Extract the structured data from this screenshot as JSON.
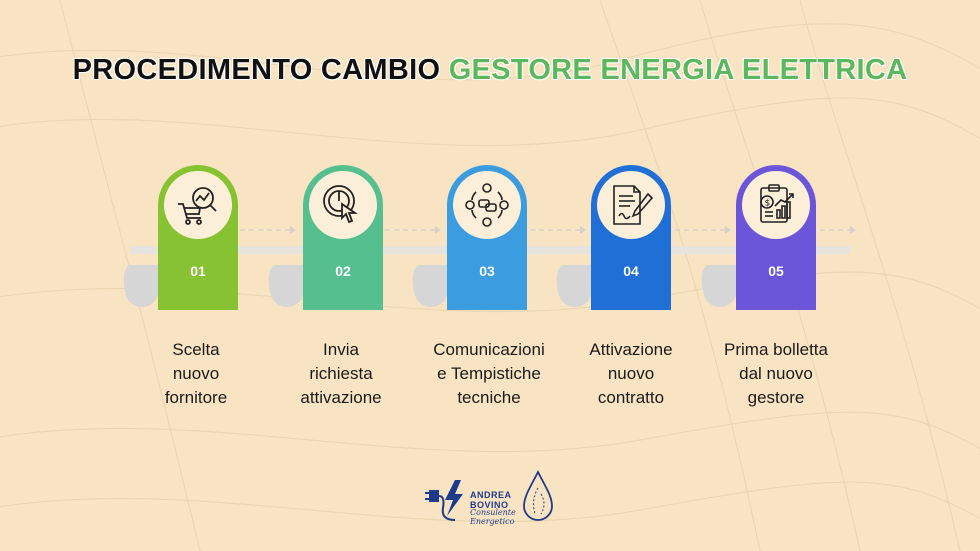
{
  "title": {
    "part1": "PROCEDIMENTO CAMBIO",
    "part2": "GESTORE ENERGIA ELETTRICA"
  },
  "steps": [
    {
      "number": "01",
      "label_lines": [
        "Scelta",
        "nuovo",
        "fornitore"
      ],
      "color": "#86c232",
      "icon": "shopping-cart-magnifier-icon"
    },
    {
      "number": "02",
      "label_lines": [
        "Invia",
        "richiesta",
        "attivazione"
      ],
      "color": "#55bf8f",
      "icon": "power-button-click-icon"
    },
    {
      "number": "03",
      "label_lines": [
        "Comunicazioni",
        "e Tempistiche",
        "tecniche"
      ],
      "color": "#3b9de0",
      "icon": "communication-network-icon"
    },
    {
      "number": "04",
      "label_lines": [
        "Attivazione",
        "nuovo",
        "contratto"
      ],
      "color": "#1f6fd6",
      "icon": "contract-document-pen-icon"
    },
    {
      "number": "05",
      "label_lines": [
        "Prima bolletta",
        "dal nuovo",
        "gestore"
      ],
      "color": "#6b55d8",
      "icon": "bill-chart-icon"
    }
  ],
  "logo": {
    "name_line1": "ANDREA",
    "name_line2": "BOVINO",
    "subtitle_line1": "Consulente",
    "subtitle_line2": "Energetico"
  }
}
